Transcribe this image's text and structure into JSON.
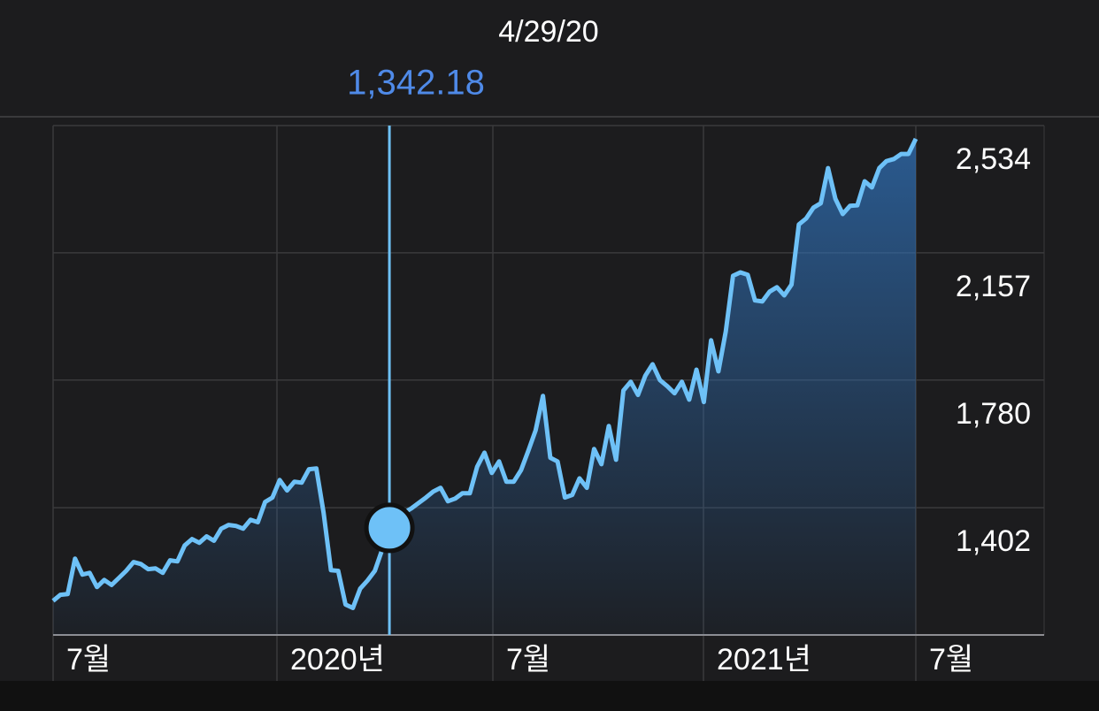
{
  "chart_data": {
    "type": "line",
    "title": "4/29/20",
    "selected": {
      "value": 1342.18,
      "label": "1,342.18"
    },
    "xtick_labels": [
      "7월",
      "2020년",
      "7월",
      "2021년",
      "7월"
    ],
    "color": "#6ec1f7",
    "values": [
      1126,
      1144,
      1146,
      1251,
      1204,
      1209,
      1167,
      1188,
      1173,
      1194,
      1215,
      1241,
      1235,
      1220,
      1222,
      1209,
      1246,
      1243,
      1290,
      1309,
      1298,
      1317,
      1304,
      1340,
      1351,
      1348,
      1340,
      1366,
      1359,
      1419,
      1432,
      1484,
      1453,
      1479,
      1476,
      1516,
      1518,
      1387,
      1217,
      1215,
      1115,
      1105,
      1162,
      1186,
      1215,
      1277,
      1342.18,
      1361,
      1387,
      1400,
      1416,
      1432,
      1450,
      1461,
      1421,
      1429,
      1445,
      1445,
      1523,
      1565,
      1505,
      1539,
      1479,
      1479,
      1513,
      1571,
      1631,
      1733,
      1550,
      1539,
      1432,
      1440,
      1489,
      1461,
      1576,
      1531,
      1644,
      1544,
      1749,
      1775,
      1736,
      1793,
      1827,
      1780,
      1762,
      1741,
      1775,
      1722,
      1811,
      1715,
      1898,
      1806,
      1924,
      2089,
      2099,
      2092,
      2016,
      2013,
      2042,
      2055,
      2031,
      2063,
      2241,
      2259,
      2291,
      2304,
      2408,
      2317,
      2272,
      2296,
      2298,
      2369,
      2351,
      2408,
      2429,
      2435,
      2450,
      2450,
      2495
    ],
    "ylim": [
      1025,
      2534
    ],
    "yticks": [
      {
        "value": 1402,
        "label": "1,402"
      },
      {
        "value": 1780,
        "label": "1,780"
      },
      {
        "value": 2157,
        "label": "2,157"
      },
      {
        "value": 2534,
        "label": "2,534"
      }
    ],
    "grid": true
  }
}
